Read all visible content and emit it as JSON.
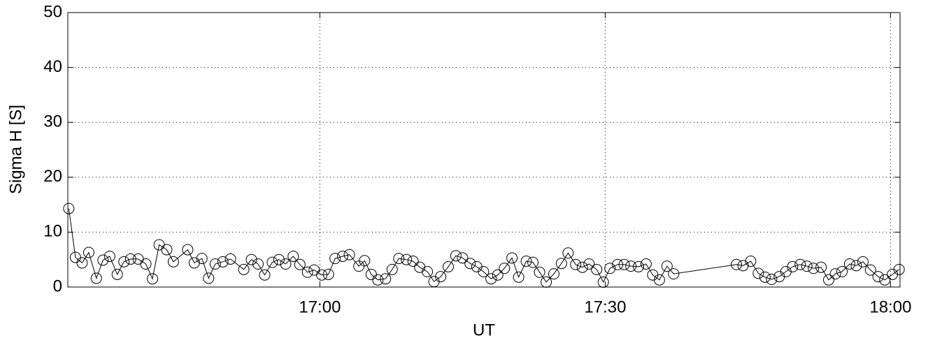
{
  "chart_data": {
    "type": "line",
    "x_label": "UT",
    "y_label": "Sigma H [S]",
    "x": [
      993.6,
      994.3,
      995.0,
      995.7,
      996.5,
      997.2,
      997.9,
      998.7,
      999.4,
      1000.1,
      1000.9,
      1001.7,
      1002.4,
      1003.1,
      1003.9,
      1004.6,
      1006.1,
      1006.8,
      1007.6,
      1008.3,
      1009.0,
      1009.8,
      1010.6,
      1012.0,
      1012.8,
      1013.5,
      1014.2,
      1015.0,
      1015.7,
      1016.4,
      1017.2,
      1017.9,
      1018.7,
      1019.4,
      1020.2,
      1020.9,
      1021.6,
      1022.4,
      1023.1,
      1024.1,
      1024.7,
      1025.4,
      1026.1,
      1026.9,
      1027.6,
      1028.3,
      1029.1,
      1029.8,
      1030.5,
      1031.3,
      1032.0,
      1032.7,
      1033.5,
      1034.3,
      1035.0,
      1035.8,
      1036.5,
      1037.2,
      1038.0,
      1038.7,
      1039.4,
      1040.2,
      1040.9,
      1041.7,
      1042.4,
      1043.1,
      1043.8,
      1044.6,
      1045.4,
      1046.1,
      1046.9,
      1047.6,
      1048.3,
      1049.1,
      1049.8,
      1050.5,
      1051.3,
      1052.0,
      1052.7,
      1053.5,
      1054.3,
      1055.0,
      1055.7,
      1056.5,
      1057.2,
      1063.8,
      1064.5,
      1065.3,
      1066.1,
      1066.8,
      1067.5,
      1068.3,
      1069.0,
      1069.7,
      1070.5,
      1071.2,
      1071.9,
      1072.7,
      1073.5,
      1074.2,
      1074.9,
      1075.7,
      1076.4,
      1077.1,
      1077.9,
      1078.7,
      1079.4,
      1080.2,
      1080.9
    ],
    "values": [
      14.3,
      5.4,
      4.4,
      6.3,
      1.6,
      4.9,
      5.6,
      2.3,
      4.6,
      5.1,
      5.1,
      4.2,
      1.5,
      7.7,
      6.8,
      4.6,
      6.8,
      4.4,
      5.2,
      1.6,
      4.2,
      4.6,
      5.1,
      3.2,
      5.0,
      4.2,
      2.2,
      4.5,
      5.0,
      4.2,
      5.6,
      4.1,
      2.7,
      3.1,
      2.2,
      2.3,
      5.2,
      5.6,
      5.9,
      3.8,
      4.8,
      2.3,
      1.3,
      1.5,
      3.2,
      5.2,
      5.0,
      4.7,
      3.6,
      2.8,
      1.0,
      1.9,
      3.7,
      5.7,
      5.3,
      4.3,
      3.7,
      2.8,
      1.5,
      2.2,
      3.4,
      5.3,
      1.8,
      4.7,
      4.5,
      2.7,
      0.9,
      2.4,
      4.3,
      6.2,
      4.1,
      3.6,
      4.2,
      3.2,
      0.9,
      3.4,
      4.1,
      4.1,
      3.8,
      3.7,
      4.2,
      2.2,
      1.3,
      3.8,
      2.4,
      4.1,
      3.9,
      4.7,
      2.5,
      1.8,
      1.4,
      1.9,
      2.8,
      3.7,
      4.1,
      3.8,
      3.4,
      3.6,
      1.3,
      2.4,
      2.8,
      4.2,
      3.9,
      4.6,
      3.1,
      1.9,
      1.3,
      2.3,
      3.2
    ],
    "color": "#000000",
    "marker": "circle",
    "xlim": [
      993.5,
      1081
    ],
    "xticks": [
      {
        "value": 1020,
        "label": "17:00"
      },
      {
        "value": 1050,
        "label": "17:30"
      },
      {
        "value": 1080,
        "label": "18:00"
      }
    ],
    "ylim": [
      0,
      50
    ],
    "yticks": [
      0,
      10,
      20,
      30,
      40,
      50
    ],
    "grid": true
  }
}
